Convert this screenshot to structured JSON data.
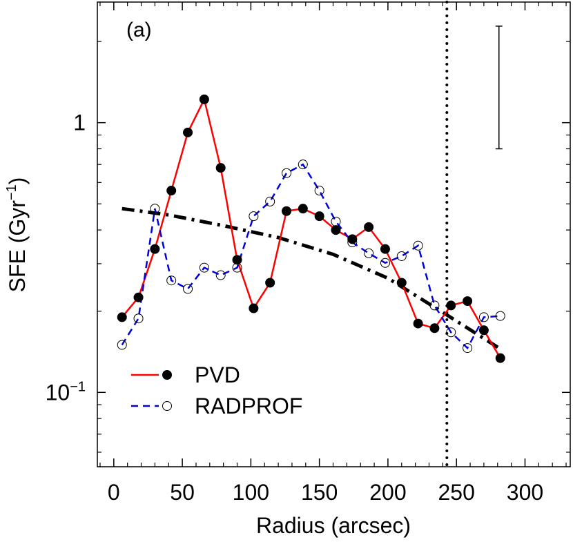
{
  "chart_data": {
    "type": "line",
    "panel_label": "(a)",
    "xlabel": "Radius (arcsec)",
    "ylabel": {
      "base": "SFE (Gyr",
      "sup": "−1",
      "close": ")"
    },
    "xlim": [
      -12,
      333
    ],
    "ylim": [
      0.053,
      2.8
    ],
    "yscale": "log",
    "x_ticks": [
      0,
      50,
      100,
      150,
      200,
      250,
      300
    ],
    "x_tick_labels": [
      "0",
      "50",
      "100",
      "150",
      "200",
      "250",
      "300"
    ],
    "y_tick_labels": [
      {
        "value": 1,
        "base": "1",
        "sup": ""
      },
      {
        "value": 0.1,
        "base": "10",
        "sup": "−1"
      }
    ],
    "series": [
      {
        "name": "PVD",
        "color": "#ff0000",
        "line_style": "solid",
        "marker": "filled-circle",
        "x": [
          6,
          18,
          30,
          42,
          54,
          66,
          78,
          90,
          102,
          114,
          126,
          138,
          150,
          162,
          174,
          186,
          198,
          210,
          222,
          234,
          246,
          258,
          270,
          282
        ],
        "y": [
          0.19,
          0.225,
          0.34,
          0.56,
          0.92,
          1.22,
          0.68,
          0.31,
          0.205,
          0.255,
          0.47,
          0.48,
          0.45,
          0.4,
          0.37,
          0.41,
          0.34,
          0.255,
          0.18,
          0.173,
          0.21,
          0.218,
          0.17,
          0.134
        ]
      },
      {
        "name": "RADPROF",
        "color": "#0000dd",
        "line_style": "dashed",
        "marker": "open-circle",
        "x": [
          6,
          18,
          30,
          42,
          54,
          66,
          78,
          90,
          102,
          114,
          126,
          138,
          150,
          162,
          174,
          186,
          198,
          210,
          222,
          234,
          246,
          258,
          270,
          282
        ],
        "y": [
          0.15,
          0.188,
          0.48,
          0.26,
          0.242,
          0.29,
          0.272,
          0.29,
          0.45,
          0.51,
          0.65,
          0.7,
          0.56,
          0.43,
          0.36,
          0.328,
          0.302,
          0.32,
          0.35,
          0.21,
          0.167,
          0.146,
          0.19,
          0.192
        ]
      }
    ],
    "fit_line": {
      "color": "#000000",
      "line_style": "dash-dot",
      "x": [
        6,
        40,
        80,
        120,
        160,
        200,
        240,
        282
      ],
      "y": [
        0.48,
        0.455,
        0.415,
        0.375,
        0.325,
        0.265,
        0.198,
        0.145
      ]
    },
    "vertical_line": {
      "x": 243,
      "style": "dotted",
      "color": "#000000"
    },
    "error_bar": {
      "x": 281,
      "y_low": 0.8,
      "y_high": 2.28
    },
    "legend": {
      "placement": "bottom-left",
      "entries": [
        {
          "label": "PVD",
          "color": "#ff0000",
          "line_style": "solid",
          "marker": "filled-circle"
        },
        {
          "label": "RADPROF",
          "color": "#0000dd",
          "line_style": "dashed",
          "marker": "open-circle"
        }
      ]
    }
  }
}
